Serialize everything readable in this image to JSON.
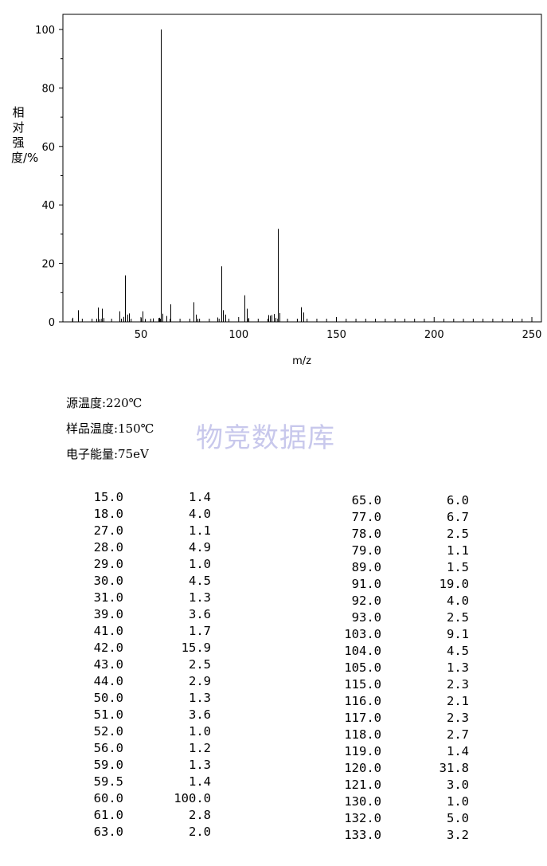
{
  "chart_data": {
    "type": "bar",
    "xlabel": "m/z",
    "ylabel": "相对强度/%",
    "xlim": [
      10,
      256
    ],
    "ylim": [
      0,
      100
    ],
    "xticks": [
      50,
      100,
      150,
      200,
      250
    ],
    "yticks": [
      0,
      20,
      40,
      60,
      80,
      100
    ],
    "grid": false,
    "peaks": [
      {
        "mz": 15.0,
        "intensity": 1.4
      },
      {
        "mz": 18.0,
        "intensity": 4.0
      },
      {
        "mz": 27.0,
        "intensity": 1.1
      },
      {
        "mz": 28.0,
        "intensity": 4.9
      },
      {
        "mz": 29.0,
        "intensity": 1.0
      },
      {
        "mz": 30.0,
        "intensity": 4.5
      },
      {
        "mz": 31.0,
        "intensity": 1.3
      },
      {
        "mz": 39.0,
        "intensity": 3.6
      },
      {
        "mz": 41.0,
        "intensity": 1.7
      },
      {
        "mz": 42.0,
        "intensity": 15.9
      },
      {
        "mz": 43.0,
        "intensity": 2.5
      },
      {
        "mz": 44.0,
        "intensity": 2.9
      },
      {
        "mz": 50.0,
        "intensity": 1.3
      },
      {
        "mz": 51.0,
        "intensity": 3.6
      },
      {
        "mz": 52.0,
        "intensity": 1.0
      },
      {
        "mz": 56.0,
        "intensity": 1.2
      },
      {
        "mz": 59.0,
        "intensity": 1.3
      },
      {
        "mz": 59.5,
        "intensity": 1.4
      },
      {
        "mz": 60.0,
        "intensity": 100.0
      },
      {
        "mz": 61.0,
        "intensity": 2.8
      },
      {
        "mz": 63.0,
        "intensity": 2.0
      },
      {
        "mz": 65.0,
        "intensity": 6.0
      },
      {
        "mz": 77.0,
        "intensity": 6.7
      },
      {
        "mz": 78.0,
        "intensity": 2.5
      },
      {
        "mz": 79.0,
        "intensity": 1.1
      },
      {
        "mz": 89.0,
        "intensity": 1.5
      },
      {
        "mz": 91.0,
        "intensity": 19.0
      },
      {
        "mz": 92.0,
        "intensity": 4.0
      },
      {
        "mz": 93.0,
        "intensity": 2.5
      },
      {
        "mz": 103.0,
        "intensity": 9.1
      },
      {
        "mz": 104.0,
        "intensity": 4.5
      },
      {
        "mz": 105.0,
        "intensity": 1.3
      },
      {
        "mz": 115.0,
        "intensity": 2.3
      },
      {
        "mz": 116.0,
        "intensity": 2.1
      },
      {
        "mz": 117.0,
        "intensity": 2.3
      },
      {
        "mz": 118.0,
        "intensity": 2.7
      },
      {
        "mz": 119.0,
        "intensity": 1.4
      },
      {
        "mz": 120.0,
        "intensity": 31.8
      },
      {
        "mz": 121.0,
        "intensity": 3.0
      },
      {
        "mz": 130.0,
        "intensity": 1.0
      },
      {
        "mz": 132.0,
        "intensity": 5.0
      },
      {
        "mz": 133.0,
        "intensity": 3.2
      }
    ]
  },
  "info": {
    "source_temp": "源温度:220℃",
    "sample_temp": "样品温度:150℃",
    "electron_energy": "电子能量:75eV"
  },
  "watermark": "物竞数据库",
  "table": {
    "left": [
      [
        "15.0",
        "1.4"
      ],
      [
        "18.0",
        "4.0"
      ],
      [
        "27.0",
        "1.1"
      ],
      [
        "28.0",
        "4.9"
      ],
      [
        "29.0",
        "1.0"
      ],
      [
        "30.0",
        "4.5"
      ],
      [
        "31.0",
        "1.3"
      ],
      [
        "39.0",
        "3.6"
      ],
      [
        "41.0",
        "1.7"
      ],
      [
        "42.0",
        "15.9"
      ],
      [
        "43.0",
        "2.5"
      ],
      [
        "44.0",
        "2.9"
      ],
      [
        "50.0",
        "1.3"
      ],
      [
        "51.0",
        "3.6"
      ],
      [
        "52.0",
        "1.0"
      ],
      [
        "56.0",
        "1.2"
      ],
      [
        "59.0",
        "1.3"
      ],
      [
        "59.5",
        "1.4"
      ],
      [
        "60.0",
        "100.0"
      ],
      [
        "61.0",
        "2.8"
      ],
      [
        "63.0",
        "2.0"
      ]
    ],
    "right": [
      [
        "65.0",
        "6.0"
      ],
      [
        "77.0",
        "6.7"
      ],
      [
        "78.0",
        "2.5"
      ],
      [
        "79.0",
        "1.1"
      ],
      [
        "89.0",
        "1.5"
      ],
      [
        "91.0",
        "19.0"
      ],
      [
        "92.0",
        "4.0"
      ],
      [
        "93.0",
        "2.5"
      ],
      [
        "103.0",
        "9.1"
      ],
      [
        "104.0",
        "4.5"
      ],
      [
        "105.0",
        "1.3"
      ],
      [
        "115.0",
        "2.3"
      ],
      [
        "116.0",
        "2.1"
      ],
      [
        "117.0",
        "2.3"
      ],
      [
        "118.0",
        "2.7"
      ],
      [
        "119.0",
        "1.4"
      ],
      [
        "120.0",
        "31.8"
      ],
      [
        "121.0",
        "3.0"
      ],
      [
        "130.0",
        "1.0"
      ],
      [
        "132.0",
        "5.0"
      ],
      [
        "133.0",
        "3.2"
      ]
    ]
  }
}
